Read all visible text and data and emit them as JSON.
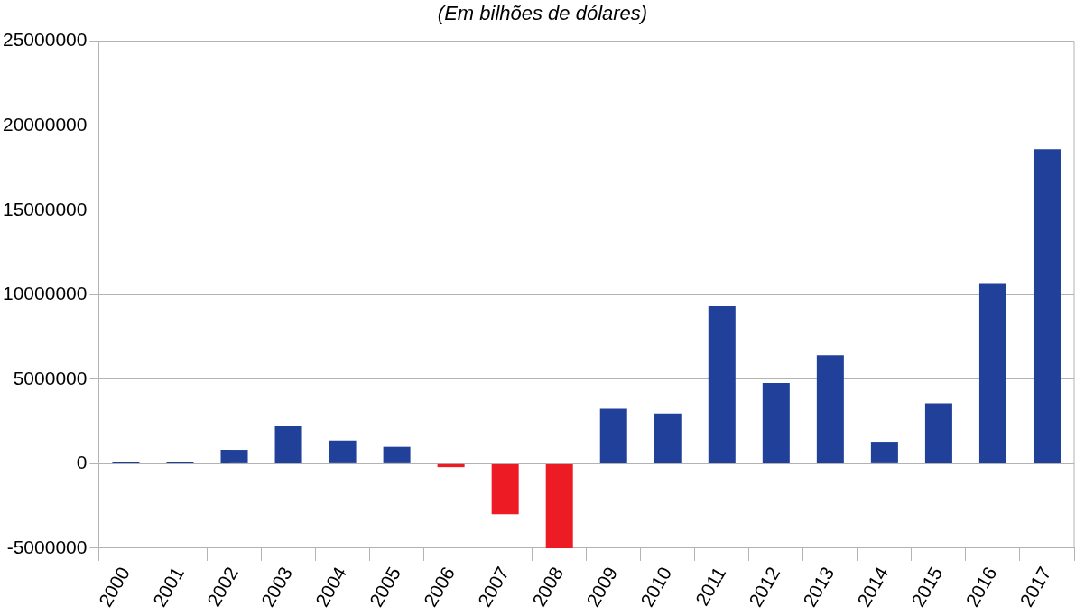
{
  "chart_data": {
    "type": "bar",
    "title": "(Em bilhões de dólares)",
    "categories": [
      "2000",
      "2001",
      "2002",
      "2003",
      "2004",
      "2005",
      "2006",
      "2007",
      "2008",
      "2009",
      "2010",
      "2011",
      "2012",
      "2013",
      "2014",
      "2015",
      "2016",
      "2017"
    ],
    "values": [
      20000,
      80000,
      820000,
      2210000,
      1370000,
      1000000,
      -200000,
      -2990000,
      -5000000,
      3260000,
      2980000,
      9320000,
      4780000,
      6420000,
      1300000,
      3580000,
      10680000,
      18610000
    ],
    "colors": [
      "#21409a",
      "#21409a",
      "#21409a",
      "#21409a",
      "#21409a",
      "#21409a",
      "#ed1c24",
      "#ed1c24",
      "#ed1c24",
      "#21409a",
      "#21409a",
      "#21409a",
      "#21409a",
      "#21409a",
      "#21409a",
      "#21409a",
      "#21409a",
      "#21409a"
    ],
    "ylim": [
      -5000000,
      25000000
    ],
    "yticks": [
      -5000000,
      0,
      5000000,
      10000000,
      15000000,
      20000000,
      25000000
    ],
    "grid": "y",
    "legend": false
  }
}
